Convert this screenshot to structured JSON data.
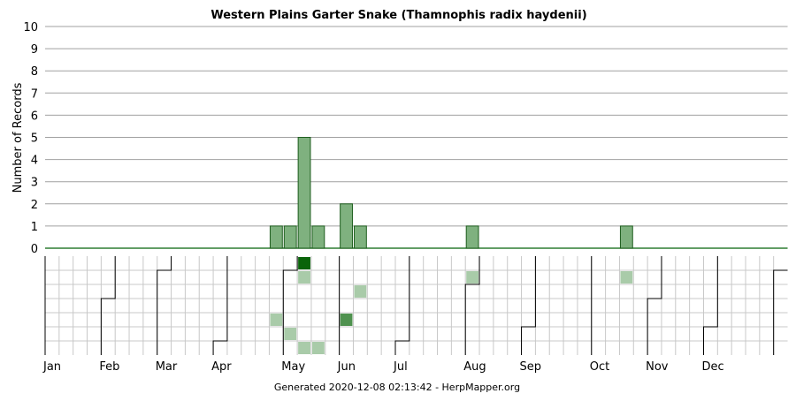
{
  "chart_data": {
    "type": "bar",
    "title": "Western Plains Garter Snake (Thamnophis radix haydenii)",
    "ylabel": "Number of Records",
    "xlabel": "",
    "ylim": [
      0,
      10
    ],
    "yticks": [
      "0",
      "1",
      "2",
      "3",
      "4",
      "5",
      "6",
      "7",
      "8",
      "9",
      "10"
    ],
    "grid": true,
    "week_index_range": [
      0,
      52
    ],
    "month_labels": [
      "Jan",
      "Feb",
      "Mar",
      "Apr",
      "May",
      "Jun",
      "Jul",
      "Aug",
      "Sep",
      "Oct",
      "Nov",
      "Dec"
    ],
    "month_start_week": [
      0,
      4,
      8,
      12,
      17,
      21,
      25,
      30,
      34,
      39,
      43,
      47
    ],
    "bar_week_index": [
      16,
      17,
      18,
      19,
      21,
      22,
      30,
      41
    ],
    "values": [
      1,
      1,
      5,
      1,
      2,
      1,
      1,
      1
    ],
    "calendar_cells": [
      {
        "week_index": 18,
        "weekday": 0,
        "intensity": 3
      },
      {
        "week_index": 18,
        "weekday": 1,
        "intensity": 1
      },
      {
        "week_index": 22,
        "weekday": 2,
        "intensity": 1
      },
      {
        "week_index": 16,
        "weekday": 4,
        "intensity": 1
      },
      {
        "week_index": 21,
        "weekday": 4,
        "intensity": 2
      },
      {
        "week_index": 17,
        "weekday": 5,
        "intensity": 1
      },
      {
        "week_index": 18,
        "weekday": 6,
        "intensity": 1
      },
      {
        "week_index": 19,
        "weekday": 6,
        "intensity": 1
      },
      {
        "week_index": 30,
        "weekday": 1,
        "intensity": 1
      },
      {
        "week_index": 41,
        "weekday": 1,
        "intensity": 1
      }
    ],
    "colors": {
      "bar_fill": "#7fb17f",
      "bar_stroke": "#1e5e1e",
      "zero_line": "#2e7d32",
      "grid": "#a0a0a0",
      "cell_border": "#c8c8c8",
      "month_border": "#000000",
      "intensity_1": "#a9cba9",
      "intensity_2": "#4f924f",
      "intensity_3": "#0a640a"
    }
  },
  "footer": "Generated 2020-12-08 02:13:42 - HerpMapper.org"
}
